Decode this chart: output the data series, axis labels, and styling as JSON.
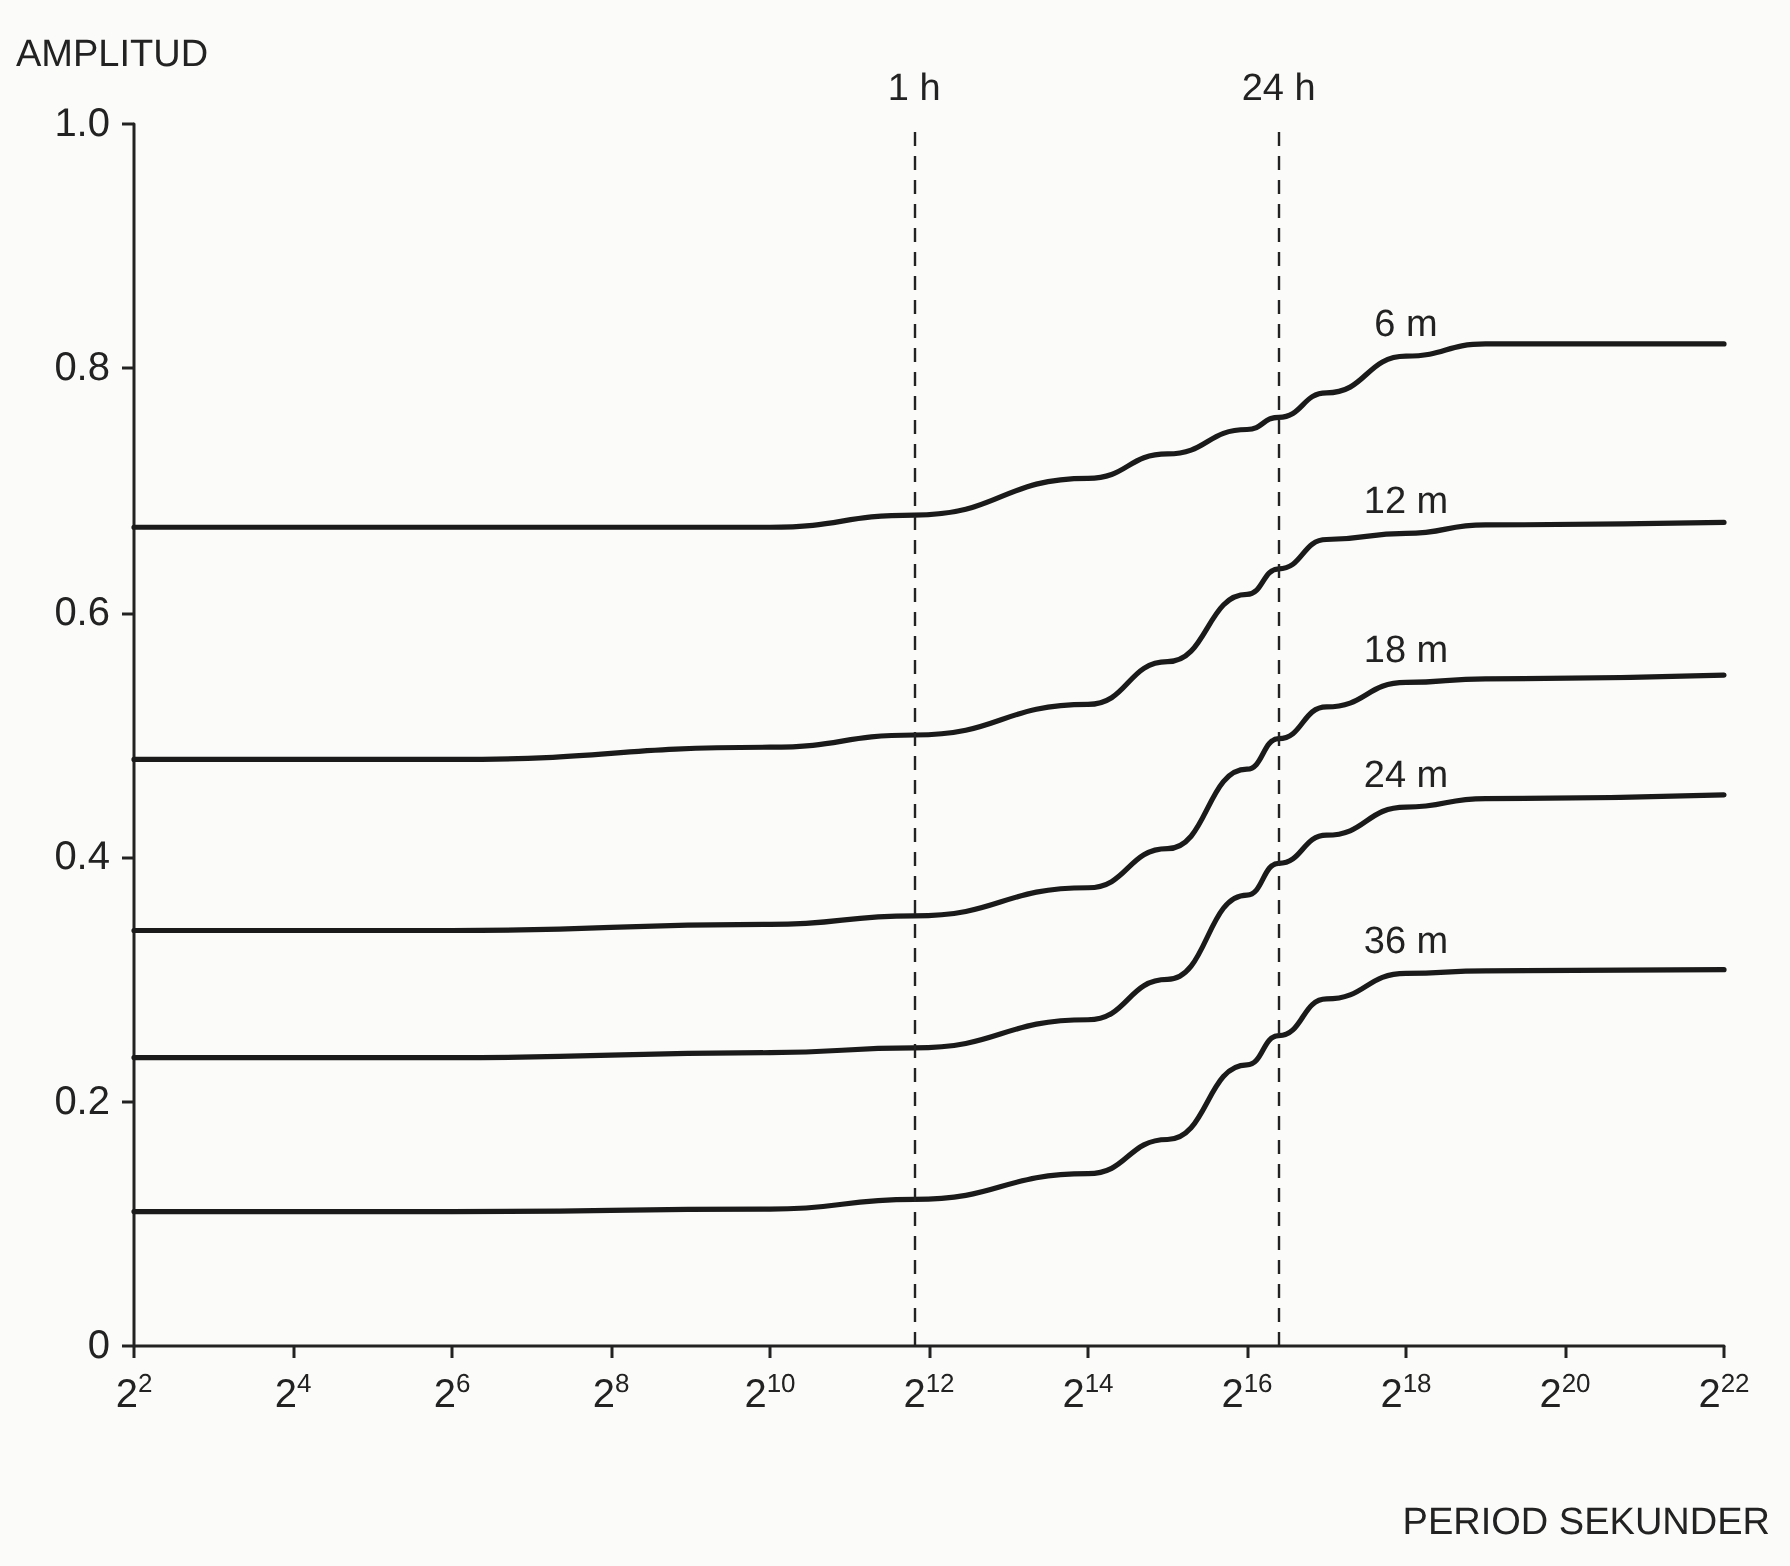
{
  "chart_data": {
    "type": "line",
    "xlabel": "PERIOD SEKUNDER",
    "ylabel": "AMPLITUD",
    "log": "x",
    "x": [
      4,
      64,
      1024,
      3600,
      16384,
      32768,
      65536,
      86400,
      131072,
      262144,
      524288,
      4194304
    ],
    "series": [
      {
        "name": "6 m",
        "color": "#1a1a1a",
        "values": [
          0.67,
          0.67,
          0.67,
          0.68,
          0.71,
          0.73,
          0.75,
          0.76,
          0.78,
          0.81,
          0.82,
          0.82
        ]
      },
      {
        "name": "12 m",
        "color": "#1a1a1a",
        "values": [
          0.48,
          0.48,
          0.49,
          0.5,
          0.525,
          0.56,
          0.615,
          0.636,
          0.66,
          0.665,
          0.672,
          0.674
        ]
      },
      {
        "name": "18 m",
        "color": "#1a1a1a",
        "values": [
          0.34,
          0.34,
          0.345,
          0.352,
          0.375,
          0.407,
          0.472,
          0.497,
          0.523,
          0.543,
          0.546,
          0.549
        ]
      },
      {
        "name": "24 m",
        "color": "#1a1a1a",
        "values": [
          0.236,
          0.236,
          0.24,
          0.244,
          0.267,
          0.3,
          0.369,
          0.395,
          0.418,
          0.441,
          0.448,
          0.451
        ]
      },
      {
        "name": "36 m",
        "color": "#1a1a1a",
        "values": [
          0.11,
          0.11,
          0.112,
          0.12,
          0.141,
          0.169,
          0.23,
          0.254,
          0.284,
          0.305,
          0.307,
          0.308
        ]
      }
    ],
    "xlim": [
      4,
      4194304
    ],
    "xticks": [
      {
        "value": 4,
        "label": "2$^{2}$"
      },
      {
        "value": 16,
        "label": "2$^{4}$"
      },
      {
        "value": 64,
        "label": "2$^{6}$"
      },
      {
        "value": 256,
        "label": "2$^{8}$"
      },
      {
        "value": 1024,
        "label": "2$^{10}$"
      },
      {
        "value": 4096,
        "label": "2$^{12}$"
      },
      {
        "value": 16384,
        "label": "2$^{14}$"
      },
      {
        "value": 65536,
        "label": "2$^{16}$"
      },
      {
        "value": 262144,
        "label": "2$^{18}$"
      },
      {
        "value": 1048576,
        "label": "2$^{20}$"
      },
      {
        "value": 4194304,
        "label": "2$^{22}$"
      }
    ],
    "ylim": [
      0,
      1
    ],
    "yticks": [
      0,
      {
        "value": 0.2,
        "label": "0.2"
      },
      {
        "value": 0.4,
        "label": "0.4"
      },
      {
        "value": 0.6,
        "label": "0.6"
      },
      {
        "value": 0.8,
        "label": "0.8"
      },
      {
        "value": 1,
        "label": "1.0"
      }
    ],
    "ref_lines": [
      {
        "axis": "x",
        "value": 3600,
        "label": "1 h",
        "line_style": "dashed"
      },
      {
        "axis": "x",
        "value": 86400,
        "label": "24 h",
        "line_style": "dashed"
      }
    ],
    "grid": false,
    "legend": false,
    "marker": "none",
    "line_style": "solid"
  }
}
